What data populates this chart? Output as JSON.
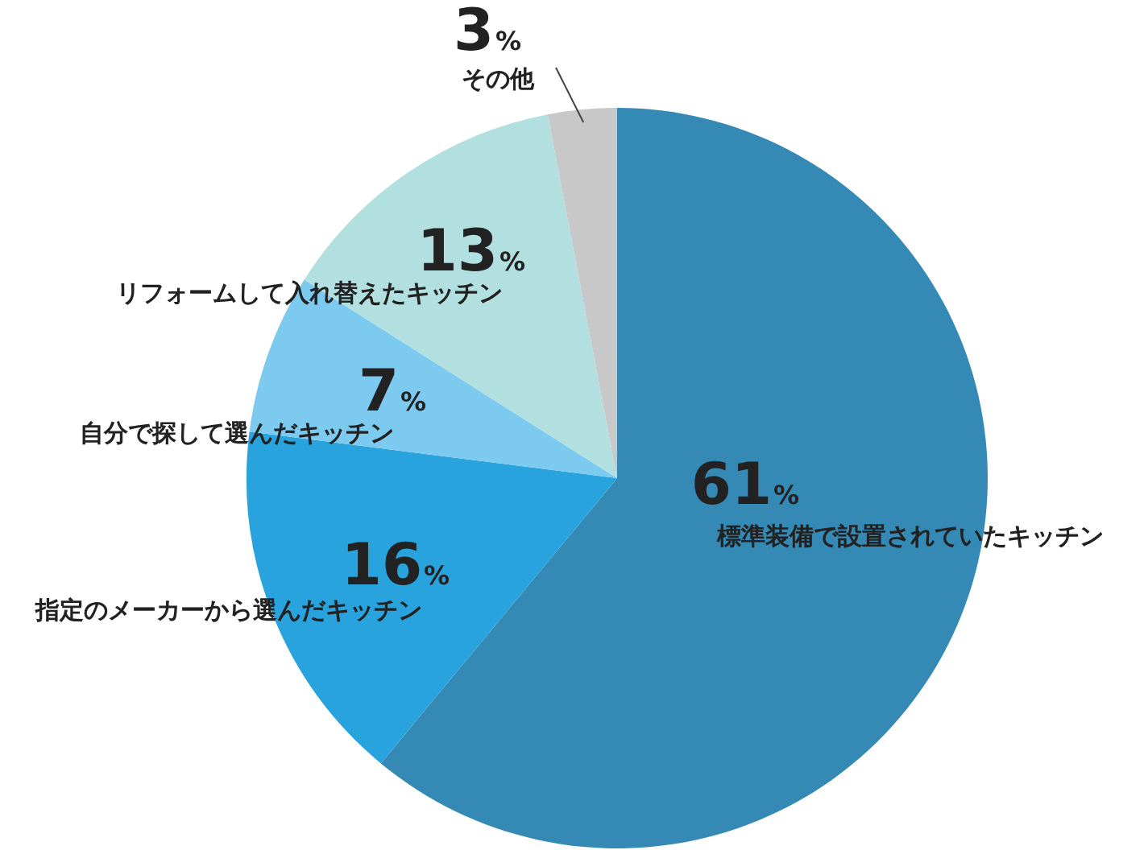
{
  "chart_data": {
    "type": "pie",
    "categories": [
      "標準装備で設置されていたキッチン",
      "指定のメーカーから選んだキッチン",
      "自分で探して選んだキッチン",
      "リフォームして入れ替えたキッチン",
      "その他"
    ],
    "values": [
      61,
      16,
      7,
      13,
      3
    ],
    "value_labels": [
      "61%",
      "16%",
      "7%",
      "13%",
      "3%"
    ],
    "colors": [
      "#3589b5",
      "#29a3de",
      "#7ccaf0",
      "#b2dfe0",
      "#c8c8c8"
    ],
    "legend": false
  }
}
